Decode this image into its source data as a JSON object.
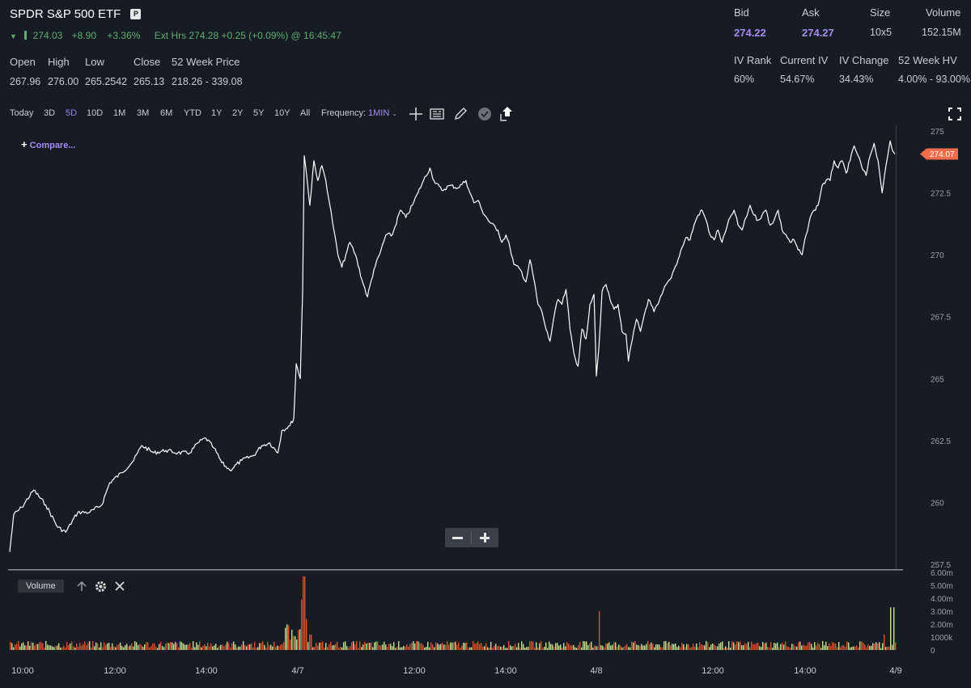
{
  "header": {
    "title": "SPDR S&P 500 ETF",
    "badge": "P",
    "last": "274.03",
    "change": "+8.90",
    "change_pct": "+3.36%",
    "ext_hrs": "Ext Hrs 274.28 +0.25 (+0.09%) @ 16:45:47"
  },
  "stats": {
    "labels": [
      "Open",
      "High",
      "Low",
      "Close",
      "52 Week Price"
    ],
    "values": [
      "267.96",
      "276.00",
      "265.2542",
      "265.13",
      "218.26 - 339.08"
    ]
  },
  "quote": {
    "labels": [
      "Bid",
      "Ask",
      "Size",
      "Volume"
    ],
    "values": [
      "274.22",
      "274.27",
      "10x5",
      "152.15M"
    ]
  },
  "vol": {
    "labels": [
      "IV Rank",
      "Current IV",
      "IV Change",
      "52 Week HV"
    ],
    "values": [
      "60%",
      "54.67%",
      "34.43%",
      "4.00% - 93.00%"
    ]
  },
  "toolbar": {
    "ranges": [
      "Today",
      "3D",
      "5D",
      "10D",
      "1M",
      "3M",
      "6M",
      "YTD",
      "1Y",
      "2Y",
      "5Y",
      "10Y",
      "All"
    ],
    "active_range": "5D",
    "frequency_label": "Frequency:",
    "frequency_value": "1MIN"
  },
  "compare_label": "Compare...",
  "volume_label": "Volume",
  "icons": {
    "crosshair": "crosshair-icon",
    "news": "news-icon",
    "draw": "pencil-icon",
    "events": "events-icon",
    "share": "share-icon",
    "fullscreen": "fullscreen-icon",
    "zoom_out": "minus-icon",
    "zoom_in": "plus-icon"
  },
  "colors": {
    "background": "#161b24",
    "price_line": "#ffffff",
    "accent": "#a68bf2",
    "positive": "#5fae6f",
    "price_tag": "#f26b4a",
    "vol_up": "#c6df8c",
    "vol_down": "#d9532c"
  },
  "chart_data": [
    {
      "type": "line",
      "series": [
        {
          "values": [
            [
              0,
              258.0
            ],
            [
              5,
              259.5
            ],
            [
              15,
              259.8
            ],
            [
              30,
              260.5
            ],
            [
              45,
              259.9
            ],
            [
              60,
              259.0
            ],
            [
              70,
              258.8
            ],
            [
              85,
              259.6
            ],
            [
              100,
              259.6
            ],
            [
              115,
              259.9
            ],
            [
              125,
              260.8
            ],
            [
              140,
              261.2
            ],
            [
              155,
              261.7
            ],
            [
              165,
              262.3
            ],
            [
              180,
              262.0
            ],
            [
              195,
              262.1
            ],
            [
              210,
              262.0
            ],
            [
              225,
              262.0
            ],
            [
              235,
              262.4
            ],
            [
              245,
              262.6
            ],
            [
              255,
              262.2
            ],
            [
              265,
              261.6
            ],
            [
              275,
              261.3
            ],
            [
              290,
              261.7
            ],
            [
              305,
              261.9
            ],
            [
              315,
              262.3
            ],
            [
              325,
              262.4
            ],
            [
              335,
              262.0
            ],
            [
              340,
              262.9
            ],
            [
              350,
              263.1
            ],
            [
              355,
              263.4
            ],
            [
              358,
              265.6
            ],
            [
              363,
              265.0
            ],
            [
              366,
              268.5
            ],
            [
              368,
              274.0
            ],
            [
              370,
              273.5
            ],
            [
              375,
              272.0
            ],
            [
              380,
              273.8
            ],
            [
              385,
              273.0
            ],
            [
              390,
              273.6
            ],
            [
              395,
              273.0
            ],
            [
              400,
              272.0
            ],
            [
              405,
              271.0
            ],
            [
              410,
              270.0
            ],
            [
              415,
              269.5
            ],
            [
              420,
              270.0
            ],
            [
              425,
              270.5
            ],
            [
              432,
              270.0
            ],
            [
              440,
              269.0
            ],
            [
              447,
              268.3
            ],
            [
              455,
              269.4
            ],
            [
              462,
              270.0
            ],
            [
              470,
              270.8
            ],
            [
              478,
              270.8
            ],
            [
              488,
              271.8
            ],
            [
              495,
              271.5
            ],
            [
              503,
              272.0
            ],
            [
              510,
              272.5
            ],
            [
              517,
              273.0
            ],
            [
              525,
              273.5
            ],
            [
              530,
              273.0
            ],
            [
              540,
              272.6
            ],
            [
              550,
              272.8
            ],
            [
              560,
              272.7
            ],
            [
              570,
              273.0
            ],
            [
              575,
              272.5
            ],
            [
              580,
              272.1
            ],
            [
              585,
              272.2
            ],
            [
              590,
              271.8
            ],
            [
              600,
              271.3
            ],
            [
              610,
              271.0
            ],
            [
              615,
              270.5
            ],
            [
              620,
              270.8
            ],
            [
              625,
              270.3
            ],
            [
              630,
              269.6
            ],
            [
              638,
              269.4
            ],
            [
              645,
              268.9
            ],
            [
              650,
              269.8
            ],
            [
              655,
              269.0
            ],
            [
              660,
              268.0
            ],
            [
              665,
              267.7
            ],
            [
              670,
              267.0
            ],
            [
              675,
              266.5
            ],
            [
              680,
              267.5
            ],
            [
              685,
              268.2
            ],
            [
              690,
              268.0
            ],
            [
              695,
              268.6
            ],
            [
              700,
              267.0
            ],
            [
              705,
              266.0
            ],
            [
              710,
              265.5
            ],
            [
              715,
              267.0
            ],
            [
              720,
              266.6
            ],
            [
              725,
              268.0
            ],
            [
              730,
              268.4
            ],
            [
              733,
              265.1
            ],
            [
              736,
              266.2
            ],
            [
              740,
              268.5
            ],
            [
              745,
              268.8
            ],
            [
              750,
              268.2
            ],
            [
              755,
              267.8
            ],
            [
              760,
              268.0
            ],
            [
              765,
              266.9
            ],
            [
              770,
              266.8
            ],
            [
              773,
              265.7
            ],
            [
              778,
              266.6
            ],
            [
              783,
              267.4
            ],
            [
              788,
              266.9
            ],
            [
              793,
              267.6
            ],
            [
              798,
              268.2
            ],
            [
              805,
              267.7
            ],
            [
              810,
              268.0
            ],
            [
              815,
              268.4
            ],
            [
              820,
              268.8
            ],
            [
              825,
              269.0
            ],
            [
              830,
              269.4
            ],
            [
              835,
              269.8
            ],
            [
              840,
              270.3
            ],
            [
              845,
              270.7
            ],
            [
              850,
              270.6
            ],
            [
              855,
              271.2
            ],
            [
              860,
              271.6
            ],
            [
              865,
              271.8
            ],
            [
              870,
              271.4
            ],
            [
              875,
              270.8
            ],
            [
              880,
              270.6
            ],
            [
              885,
              271.0
            ],
            [
              890,
              270.5
            ],
            [
              895,
              271.0
            ],
            [
              900,
              271.5
            ],
            [
              905,
              271.8
            ],
            [
              910,
              271.2
            ],
            [
              915,
              271.0
            ],
            [
              920,
              271.5
            ],
            [
              925,
              272.0
            ],
            [
              930,
              271.6
            ],
            [
              935,
              271.4
            ],
            [
              940,
              271.6
            ],
            [
              945,
              271.8
            ],
            [
              950,
              271.2
            ],
            [
              955,
              271.4
            ],
            [
              960,
              271.8
            ],
            [
              965,
              271.0
            ],
            [
              970,
              270.8
            ],
            [
              975,
              270.5
            ],
            [
              980,
              270.6
            ],
            [
              985,
              270.2
            ],
            [
              990,
              270.0
            ],
            [
              995,
              270.8
            ],
            [
              1000,
              271.5
            ],
            [
              1005,
              271.8
            ],
            [
              1010,
              272.0
            ],
            [
              1015,
              272.8
            ],
            [
              1020,
              273.0
            ],
            [
              1025,
              273.0
            ],
            [
              1030,
              273.8
            ],
            [
              1035,
              273.5
            ],
            [
              1040,
              273.8
            ],
            [
              1045,
              273.3
            ],
            [
              1050,
              273.8
            ],
            [
              1055,
              274.4
            ],
            [
              1060,
              274.0
            ],
            [
              1065,
              273.5
            ],
            [
              1070,
              273.2
            ],
            [
              1075,
              274.0
            ],
            [
              1080,
              274.5
            ],
            [
              1085,
              273.8
            ],
            [
              1088,
              273.0
            ],
            [
              1090,
              272.5
            ],
            [
              1093,
              273.2
            ],
            [
              1097,
              274.0
            ],
            [
              1100,
              274.6
            ],
            [
              1103,
              274.2
            ],
            [
              1106,
              274.07
            ]
          ]
        }
      ],
      "ylim": [
        257.5,
        275
      ],
      "y_ticks": [
        "275",
        "272.5",
        "270",
        "267.5",
        "265",
        "262.5",
        "260",
        "257.5"
      ],
      "x_tick_labels": [
        "10:00",
        "12:00",
        "14:00",
        "4/7",
        "12:00",
        "14:00",
        "4/8",
        "12:00",
        "14:00",
        "4/9"
      ],
      "last_price_label": "274.07",
      "grid": false
    },
    {
      "type": "bar",
      "title": "Volume",
      "y_ticks": [
        "6.00m",
        "5.00m",
        "4.00m",
        "3.00m",
        "2.00m",
        "1000k",
        "0"
      ],
      "ylim": [
        0,
        6000000
      ]
    }
  ]
}
